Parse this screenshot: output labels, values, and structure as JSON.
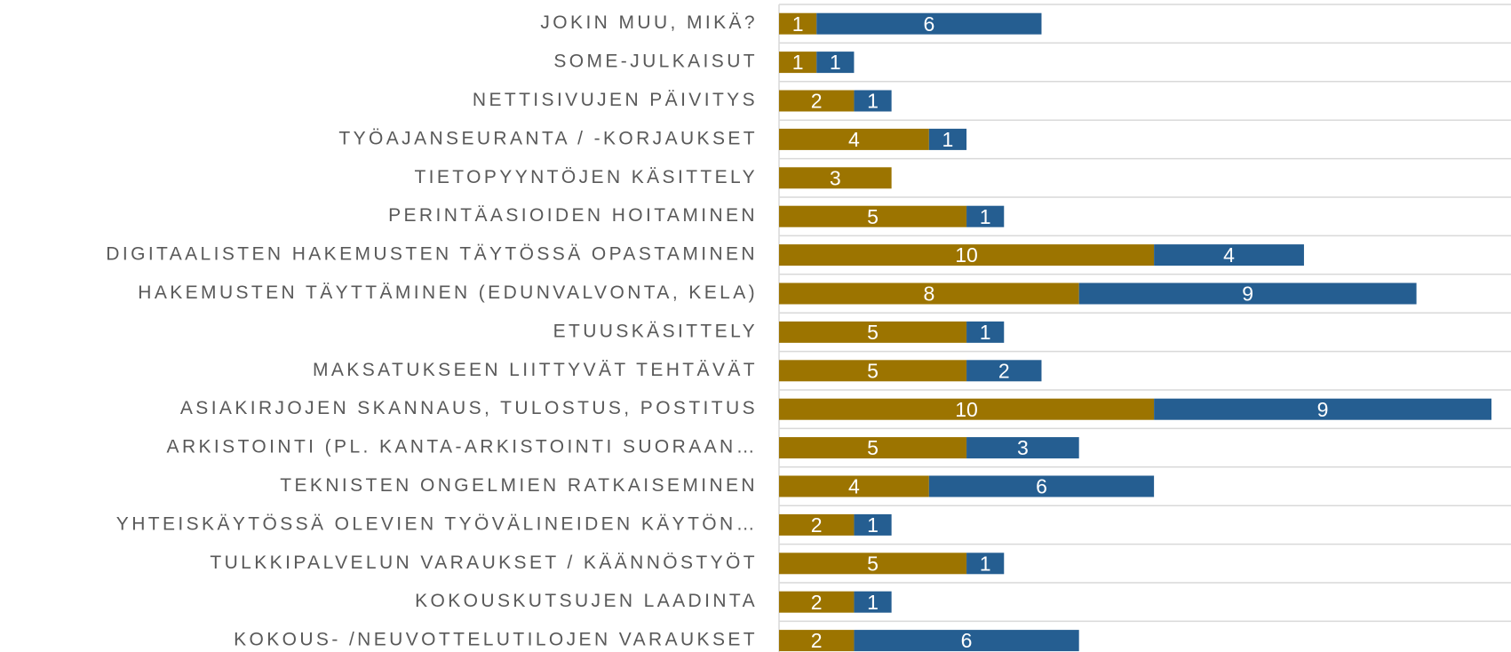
{
  "chart_data": {
    "type": "stacked-bar-horizontal",
    "categories": [
      "JOKIN MUU, MIKÄ?",
      "SOME-JULKAISUT",
      "NETTISIVUJEN PÄIVITYS",
      "TYÖAJANSEURANTA / -KORJAUKSET",
      "TIETOPYYNTÖJEN KÄSITTELY",
      "PERINTÄASIOIDEN HOITAMINEN",
      "DIGITAALISTEN HAKEMUSTEN TÄYTÖSSÄ OPASTAMINEN",
      "HAKEMUSTEN TÄYTTÄMINEN (EDUNVALVONTA, KELA)",
      "ETUUSKÄSITTELY",
      "MAKSATUKSEEN LIITTYVÄT TEHTÄVÄT",
      "ASIAKIRJOJEN SKANNAUS, TULOSTUS, POSTITUS",
      "ARKISTOINTI (PL. KANTA-ARKISTOINTI SUORAAN…",
      "TEKNISTEN ONGELMIEN RATKAISEMINEN",
      "YHTEISKÄYTÖSSÄ OLEVIEN TYÖVÄLINEIDEN KÄYTÖN…",
      "TULKKIPALVELUN VARAUKSET / KÄÄNNÖSTYÖT",
      "KOKOUSKUTSUJEN LAADINTA",
      "KOKOUS- /NEUVOTTELUTILOJEN VARAUKSET"
    ],
    "series": [
      {
        "color": "#9c7400",
        "values": [
          1,
          1,
          2,
          4,
          3,
          5,
          10,
          8,
          5,
          5,
          10,
          5,
          4,
          2,
          5,
          2,
          2
        ]
      },
      {
        "color": "#255e91",
        "values": [
          6,
          1,
          1,
          1,
          null,
          1,
          4,
          9,
          1,
          2,
          9,
          3,
          6,
          1,
          1,
          1,
          6
        ]
      }
    ]
  }
}
